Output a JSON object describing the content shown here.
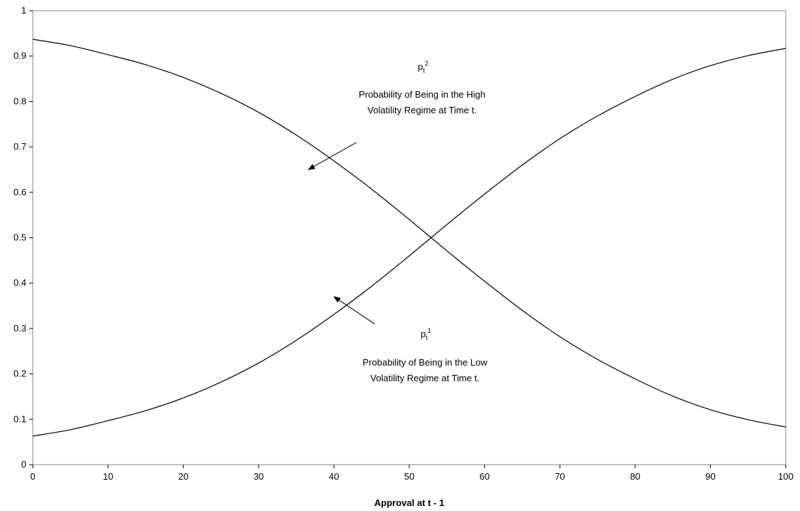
{
  "chart_data": {
    "type": "line",
    "title": "",
    "xlabel": "Approval at t - 1",
    "ylabel": "",
    "xlim": [
      0,
      100
    ],
    "ylim": [
      0,
      1
    ],
    "x_ticks": [
      0,
      10,
      20,
      30,
      40,
      50,
      60,
      70,
      80,
      90,
      100
    ],
    "y_ticks": [
      0,
      0.1,
      0.2,
      0.3,
      0.4,
      0.5,
      0.6,
      0.7,
      0.8,
      0.9,
      1
    ],
    "y_tick_labels": [
      "0",
      "0.1",
      "0.2",
      "0.3",
      "0.4",
      "0.5",
      "0.6",
      "0.7",
      "0.8",
      "0.9",
      "1"
    ],
    "grid": false,
    "line_color": "#000000",
    "series": [
      {
        "x": [
          0,
          5,
          10,
          15,
          20,
          25,
          30,
          35,
          40,
          45,
          50,
          55,
          60,
          65,
          70,
          75,
          80,
          85,
          90,
          95,
          100
        ],
        "values": [
          0.937,
          0.923,
          0.903,
          0.881,
          0.853,
          0.818,
          0.776,
          0.726,
          0.669,
          0.607,
          0.54,
          0.471,
          0.404,
          0.34,
          0.282,
          0.232,
          0.189,
          0.151,
          0.121,
          0.099,
          0.083
        ]
      },
      {
        "x": [
          0,
          5,
          10,
          15,
          20,
          25,
          30,
          35,
          40,
          45,
          50,
          55,
          60,
          65,
          70,
          75,
          80,
          85,
          90,
          95,
          100
        ],
        "values": [
          0.063,
          0.077,
          0.097,
          0.119,
          0.147,
          0.182,
          0.224,
          0.274,
          0.331,
          0.393,
          0.46,
          0.529,
          0.596,
          0.66,
          0.718,
          0.768,
          0.811,
          0.849,
          0.879,
          0.901,
          0.917
        ]
      }
    ],
    "annotations": [
      {
        "id": "high",
        "symbol": "p",
        "subscript": "t",
        "superscript": "2",
        "lines": [
          "Probability of Being in the High",
          "Volatility Regime at Time t."
        ],
        "arrow_from": [
          43,
          0.71
        ],
        "arrow_to": [
          36.6,
          0.65
        ]
      },
      {
        "id": "low",
        "symbol": "p",
        "subscript": "t",
        "superscript": "1",
        "lines": [
          "Probability of Being in the Low",
          "Volatility Regime at Time t."
        ],
        "arrow_from": [
          45.4,
          0.31
        ],
        "arrow_to": [
          40,
          0.37
        ]
      }
    ]
  }
}
